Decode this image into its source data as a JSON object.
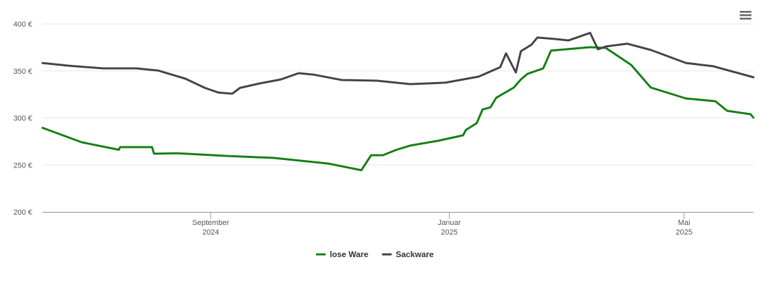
{
  "chart_data": {
    "type": "line",
    "xlim": [
      -86,
      277.5
    ],
    "xticks": [
      {
        "value": 0,
        "label": "September 2024"
      },
      {
        "value": 122,
        "label": "Januar 2025"
      },
      {
        "value": 242,
        "label": "Mai 2025"
      }
    ],
    "ylim": [
      200,
      400
    ],
    "yticks": [
      {
        "value": 200,
        "label": "200 €"
      },
      {
        "value": 250,
        "label": "250 €"
      },
      {
        "value": 300,
        "label": "300 €"
      },
      {
        "value": 350,
        "label": "350 €"
      },
      {
        "value": 400,
        "label": "400 €"
      }
    ],
    "grid": true,
    "legend": "bottom",
    "series": [
      {
        "name": "lose Ware",
        "color": "#137f13",
        "x": [
          -86,
          -66,
          -47,
          -46.3,
          -30,
          -29,
          -17,
          8,
          32,
          60,
          77,
          82,
          88,
          95,
          102,
          116,
          129,
          130.5,
          136,
          139,
          143,
          146,
          155,
          158.6,
          162,
          170,
          174,
          194,
          202,
          215,
          225,
          243,
          258,
          264,
          276,
          277.5
        ],
        "values": [
          289.5,
          274.2,
          266.2,
          269,
          269,
          262,
          262.5,
          259.6,
          257.5,
          251.6,
          244.4,
          260.4,
          260.4,
          266.2,
          270.6,
          275.6,
          281.5,
          287.3,
          294.5,
          309,
          311.3,
          321.5,
          332.4,
          341,
          347,
          352.7,
          371.6,
          375.3,
          374.5,
          356.4,
          332.4,
          320.7,
          317.8,
          307.6,
          304,
          300.4
        ]
      },
      {
        "name": "Sackware",
        "color": "#434348",
        "x": [
          -86,
          -73,
          -55,
          -38,
          -27,
          -13,
          -3,
          4,
          11,
          15,
          25,
          36,
          45,
          53,
          67,
          85,
          102,
          120,
          137,
          148,
          151,
          156,
          158.6,
          164,
          167,
          176,
          183,
          194,
          198,
          202,
          213,
          225,
          243,
          257,
          277.5
        ],
        "values": [
          358.5,
          355.6,
          352.7,
          352.7,
          350.5,
          341.8,
          332,
          327,
          325.8,
          332,
          336.7,
          341,
          347.6,
          346,
          340.4,
          339.6,
          336,
          337.5,
          344,
          354,
          368.7,
          348.4,
          371,
          378,
          385.5,
          384,
          382.5,
          390.5,
          373,
          376,
          379,
          372.4,
          358.5,
          355,
          343.3
        ]
      }
    ]
  }
}
